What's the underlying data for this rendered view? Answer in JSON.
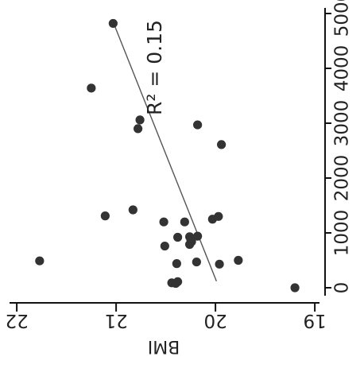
{
  "chart_data": {
    "type": "scatter",
    "orientation": "rotated-90-clockwise",
    "xlabel": "BMI",
    "ylabel": "",
    "xlim": [
      19,
      22
    ],
    "ylim": [
      0,
      5000
    ],
    "x_ticks": [
      "22",
      "21",
      "20",
      "19"
    ],
    "y_ticks": [
      "0",
      "1000",
      "2000",
      "3000",
      "4000",
      "5000"
    ],
    "annotation": "R² = 0.15",
    "fit_line": {
      "x1": 21.02,
      "y1": 4800,
      "x2": 19.99,
      "y2": 120
    },
    "colors": {
      "points": "#333333",
      "axis": "#111111",
      "text": "#222222",
      "fit_line": "#555555"
    },
    "series": [
      {
        "points": [
          {
            "x": 21.03,
            "y": 4820
          },
          {
            "x": 21.25,
            "y": 3640
          },
          {
            "x": 20.76,
            "y": 3060
          },
          {
            "x": 20.78,
            "y": 2900
          },
          {
            "x": 20.18,
            "y": 2970
          },
          {
            "x": 19.94,
            "y": 2610
          },
          {
            "x": 21.11,
            "y": 1310
          },
          {
            "x": 20.83,
            "y": 1420
          },
          {
            "x": 20.52,
            "y": 1200
          },
          {
            "x": 20.31,
            "y": 1200
          },
          {
            "x": 20.03,
            "y": 1250
          },
          {
            "x": 19.97,
            "y": 1300
          },
          {
            "x": 20.51,
            "y": 760
          },
          {
            "x": 20.38,
            "y": 920
          },
          {
            "x": 20.26,
            "y": 930
          },
          {
            "x": 20.25,
            "y": 890
          },
          {
            "x": 20.18,
            "y": 940
          },
          {
            "x": 20.24,
            "y": 840
          },
          {
            "x": 20.26,
            "y": 790
          },
          {
            "x": 21.77,
            "y": 490
          },
          {
            "x": 20.39,
            "y": 440
          },
          {
            "x": 20.19,
            "y": 470
          },
          {
            "x": 19.96,
            "y": 430
          },
          {
            "x": 19.77,
            "y": 500
          },
          {
            "x": 20.44,
            "y": 90
          },
          {
            "x": 20.38,
            "y": 110
          },
          {
            "x": 20.4,
            "y": 80
          },
          {
            "x": 19.2,
            "y": 0
          }
        ]
      }
    ]
  }
}
